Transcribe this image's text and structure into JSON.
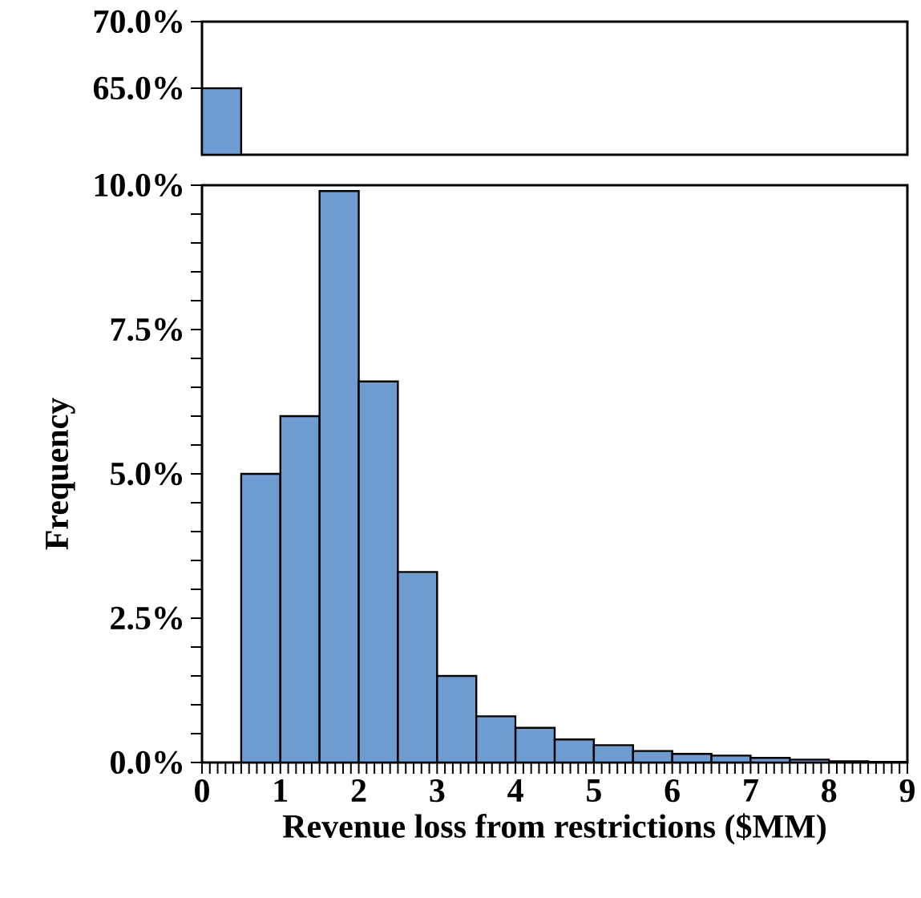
{
  "chart_data": [
    {
      "type": "histogram",
      "bins": [
        0,
        0.5
      ],
      "values": [
        65
      ],
      "color": "#6e9bd0",
      "xlim": [
        0,
        9
      ],
      "ylim": [
        60,
        70
      ],
      "yticks": [
        {
          "value": 65,
          "label": "65.0%"
        },
        {
          "value": 70,
          "label": "70.0%"
        }
      ],
      "tick_labels": "y"
    },
    {
      "type": "histogram",
      "xlabel": "Revenue loss from restrictions ($MM)",
      "ylabel": "Frequency",
      "bins": [
        0,
        0.5,
        1,
        1.5,
        2,
        2.5,
        3,
        3.5,
        4,
        4.5,
        5,
        5.5,
        6,
        6.5,
        7,
        7.5,
        8,
        8.5,
        9
      ],
      "values": [
        null,
        5.0,
        6.0,
        9.9,
        6.6,
        3.3,
        1.5,
        0.8,
        0.6,
        0.4,
        0.3,
        0.2,
        0.15,
        0.12,
        0.08,
        0.05,
        0.02,
        0.01
      ],
      "color": "#6e9bd0",
      "xlim": [
        0,
        9
      ],
      "ylim": [
        0,
        10
      ],
      "xticks": [
        0,
        {
          "value": 0.1,
          "label": null
        },
        {
          "value": 0.2,
          "label": null
        },
        {
          "value": 0.3,
          "label": null
        },
        {
          "value": 0.4,
          "label": null
        },
        {
          "value": 0.5,
          "label": null
        },
        {
          "value": 0.6,
          "label": null
        },
        {
          "value": 0.7,
          "label": null
        },
        {
          "value": 0.8,
          "label": null
        },
        {
          "value": 0.9,
          "label": null
        },
        1,
        {
          "value": 1.1,
          "label": null
        },
        {
          "value": 1.2,
          "label": null
        },
        {
          "value": 1.3,
          "label": null
        },
        {
          "value": 1.4,
          "label": null
        },
        {
          "value": 1.5,
          "label": null
        },
        {
          "value": 1.6,
          "label": null
        },
        {
          "value": 1.7,
          "label": null
        },
        {
          "value": 1.8,
          "label": null
        },
        {
          "value": 1.9,
          "label": null
        },
        2,
        {
          "value": 2.1,
          "label": null
        },
        {
          "value": 2.2,
          "label": null
        },
        {
          "value": 2.3,
          "label": null
        },
        {
          "value": 2.4,
          "label": null
        },
        {
          "value": 2.5,
          "label": null
        },
        {
          "value": 2.6,
          "label": null
        },
        {
          "value": 2.7,
          "label": null
        },
        {
          "value": 2.8,
          "label": null
        },
        {
          "value": 2.9,
          "label": null
        },
        3,
        {
          "value": 3.1,
          "label": null
        },
        {
          "value": 3.2,
          "label": null
        },
        {
          "value": 3.3,
          "label": null
        },
        {
          "value": 3.4,
          "label": null
        },
        {
          "value": 3.5,
          "label": null
        },
        {
          "value": 3.6,
          "label": null
        },
        {
          "value": 3.7,
          "label": null
        },
        {
          "value": 3.8,
          "label": null
        },
        {
          "value": 3.9,
          "label": null
        },
        4,
        {
          "value": 4.1,
          "label": null
        },
        {
          "value": 4.2,
          "label": null
        },
        {
          "value": 4.3,
          "label": null
        },
        {
          "value": 4.4,
          "label": null
        },
        {
          "value": 4.5,
          "label": null
        },
        {
          "value": 4.6,
          "label": null
        },
        {
          "value": 4.7,
          "label": null
        },
        {
          "value": 4.8,
          "label": null
        },
        {
          "value": 4.9,
          "label": null
        },
        5,
        {
          "value": 5.1,
          "label": null
        },
        {
          "value": 5.2,
          "label": null
        },
        {
          "value": 5.3,
          "label": null
        },
        {
          "value": 5.4,
          "label": null
        },
        {
          "value": 5.5,
          "label": null
        },
        {
          "value": 5.6,
          "label": null
        },
        {
          "value": 5.7,
          "label": null
        },
        {
          "value": 5.8,
          "label": null
        },
        {
          "value": 5.9,
          "label": null
        },
        6,
        {
          "value": 6.1,
          "label": null
        },
        {
          "value": 6.2,
          "label": null
        },
        {
          "value": 6.3,
          "label": null
        },
        {
          "value": 6.4,
          "label": null
        },
        {
          "value": 6.5,
          "label": null
        },
        {
          "value": 6.6,
          "label": null
        },
        {
          "value": 6.7,
          "label": null
        },
        {
          "value": 6.8,
          "label": null
        },
        {
          "value": 6.9,
          "label": null
        },
        7,
        {
          "value": 7.1,
          "label": null
        },
        {
          "value": 7.2,
          "label": null
        },
        {
          "value": 7.3,
          "label": null
        },
        {
          "value": 7.4,
          "label": null
        },
        {
          "value": 7.5,
          "label": null
        },
        {
          "value": 7.6,
          "label": null
        },
        {
          "value": 7.7,
          "label": null
        },
        {
          "value": 7.8,
          "label": null
        },
        {
          "value": 7.9,
          "label": null
        },
        8,
        {
          "value": 8.1,
          "label": null
        },
        {
          "value": 8.2,
          "label": null
        },
        {
          "value": 8.3,
          "label": null
        },
        {
          "value": 8.4,
          "label": null
        },
        {
          "value": 8.5,
          "label": null
        },
        {
          "value": 8.6,
          "label": null
        },
        {
          "value": 8.7,
          "label": null
        },
        {
          "value": 8.8,
          "label": null
        },
        {
          "value": 8.9,
          "label": null
        },
        9
      ],
      "yticks": [
        {
          "value": 0,
          "label": "0.0%"
        },
        {
          "value": 0.5,
          "label": null
        },
        {
          "value": 1,
          "label": null
        },
        {
          "value": 1.5,
          "label": null
        },
        {
          "value": 2,
          "label": null
        },
        {
          "value": 2.5,
          "label": "2.5%"
        },
        {
          "value": 3,
          "label": null
        },
        {
          "value": 3.5,
          "label": null
        },
        {
          "value": 4,
          "label": null
        },
        {
          "value": 4.5,
          "label": null
        },
        {
          "value": 5,
          "label": "5.0%"
        },
        {
          "value": 5.5,
          "label": null
        },
        {
          "value": 6,
          "label": null
        },
        {
          "value": 6.5,
          "label": null
        },
        {
          "value": 7,
          "label": null
        },
        {
          "value": 7.5,
          "label": "7.5%"
        },
        {
          "value": 8,
          "label": null
        },
        {
          "value": 8.5,
          "label": null
        },
        {
          "value": 9,
          "label": null
        },
        {
          "value": 9.5,
          "label": null
        },
        {
          "value": 10,
          "label": "10.0%"
        }
      ]
    }
  ]
}
